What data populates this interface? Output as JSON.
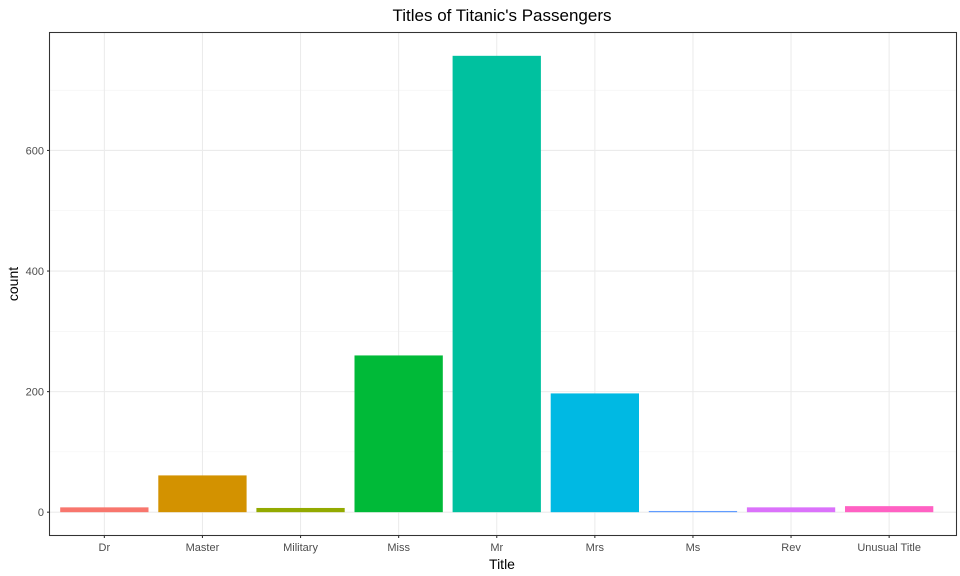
{
  "chart_data": {
    "type": "bar",
    "title": "Titles of Titanic's Passengers",
    "xlabel": "Title",
    "ylabel": "count",
    "categories": [
      "Dr",
      "Master",
      "Military",
      "Miss",
      "Mr",
      "Mrs",
      "Ms",
      "Rev",
      "Unusual Title"
    ],
    "values": [
      8,
      61,
      7,
      260,
      757,
      197,
      2,
      8,
      10
    ],
    "colors": [
      "#F8766D",
      "#D39200",
      "#93AA00",
      "#00BA38",
      "#00C19F",
      "#00B9E3",
      "#619CFF",
      "#DB72FB",
      "#FF61C3"
    ],
    "ylim": [
      -37.85,
      794.85
    ],
    "yticks": [
      0,
      200,
      400,
      600
    ],
    "grid": true,
    "legend": "none"
  }
}
